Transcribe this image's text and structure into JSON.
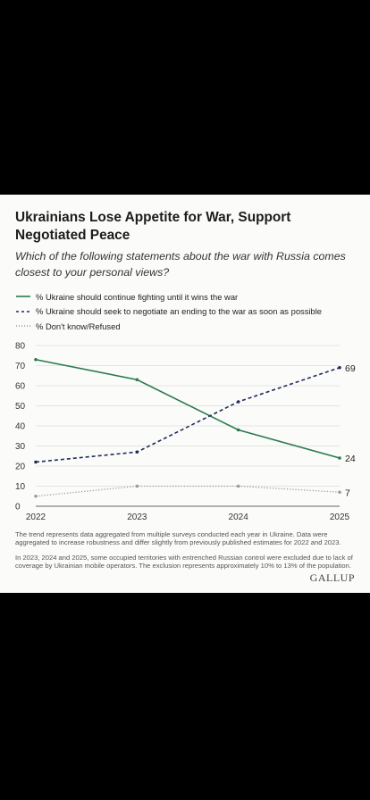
{
  "title": "Ukrainians Lose Appetite for War, Support Negotiated Peace",
  "subtitle": "Which of the following statements about the war with Russia comes closest to your personal views?",
  "notes": [
    "The trend represents data aggregated from multiple surveys conducted each year in Ukraine. Data were aggregated to increase robustness and differ slightly from previously published estimates for 2022 and 2023.",
    "In 2023, 2024 and 2025, some occupied territories with entrenched Russian control were excluded due to lack of coverage by Ukrainian mobile operators. The exclusion represents approximately 10% to 13% of the population."
  ],
  "brand": "GALLUP",
  "colors": {
    "fight": "#2a7a4f",
    "negotiate": "#1f2a5a",
    "dontknow": "#9a9a9a",
    "grid": "#dcdcdc"
  },
  "chart_data": {
    "type": "line",
    "x": [
      "2022",
      "2023",
      "2024",
      "2025"
    ],
    "ylim": [
      0,
      80
    ],
    "yticks": [
      "0",
      "10",
      "20",
      "30",
      "40",
      "50",
      "60",
      "70",
      "80"
    ],
    "grid": true,
    "legend_position": "top",
    "xlabel": "",
    "ylabel": "",
    "series": [
      {
        "name": "% Ukraine should continue fighting until it wins the war",
        "values": [
          73,
          63,
          38,
          24
        ],
        "style": "solid",
        "end_label": "24"
      },
      {
        "name": "% Ukraine should seek to negotiate an ending to the war as soon as possible",
        "values": [
          22,
          27,
          52,
          69
        ],
        "style": "dashed",
        "end_label": "69"
      },
      {
        "name": "% Don't know/Refused",
        "values": [
          5,
          10,
          10,
          7
        ],
        "style": "dotted",
        "end_label": "7"
      }
    ]
  }
}
